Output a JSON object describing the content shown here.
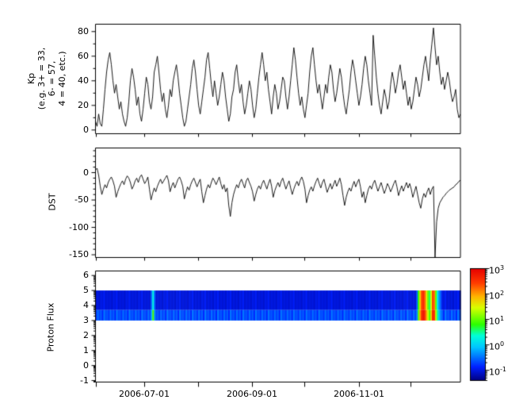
{
  "figure": {
    "background": "#ffffff",
    "frame_color": "#000000",
    "text_color": "#000000"
  },
  "chart_data": {
    "x_axis": {
      "date_range": [
        "2006-06-01",
        "2006-12-29"
      ],
      "month_ticks": [
        "2006-06-01",
        "2006-07-01",
        "2006-08-01",
        "2006-09-01",
        "2006-10-01",
        "2006-11-01",
        "2006-12-01"
      ],
      "labeled_tick_indices": [
        1,
        3,
        5
      ],
      "tick_labels": [
        "2006-07-01",
        "2006-09-01",
        "2006-11-01"
      ]
    },
    "kp": {
      "type": "line",
      "ylabel": "Kp\n(e.g. 3+ = 33,\n6- = 57,\n4 = 40, etc.)",
      "yticks": [
        80,
        60,
        40,
        20,
        0
      ],
      "yticklabels": [
        "80",
        "60",
        "40",
        "20",
        "0"
      ],
      "yminorticks": [
        10,
        30,
        50,
        70
      ],
      "ylim": [
        -3,
        86
      ],
      "line_color": "#000000",
      "values": [
        7,
        3,
        13,
        5,
        3,
        17,
        33,
        47,
        57,
        63,
        53,
        40,
        30,
        37,
        27,
        17,
        23,
        13,
        7,
        3,
        10,
        23,
        40,
        50,
        43,
        33,
        20,
        27,
        13,
        7,
        17,
        30,
        43,
        37,
        23,
        17,
        27,
        47,
        53,
        60,
        47,
        33,
        23,
        30,
        17,
        10,
        20,
        33,
        27,
        40,
        47,
        53,
        43,
        30,
        20,
        10,
        3,
        7,
        17,
        27,
        37,
        50,
        57,
        47,
        33,
        20,
        13,
        23,
        33,
        43,
        57,
        63,
        50,
        37,
        27,
        40,
        30,
        20,
        27,
        37,
        47,
        40,
        27,
        17,
        7,
        13,
        27,
        33,
        47,
        53,
        40,
        30,
        37,
        23,
        13,
        20,
        30,
        40,
        33,
        20,
        10,
        17,
        30,
        43,
        53,
        63,
        53,
        40,
        47,
        33,
        23,
        13,
        27,
        37,
        30,
        17,
        23,
        33,
        43,
        40,
        27,
        17,
        27,
        40,
        53,
        67,
        57,
        43,
        30,
        20,
        27,
        17,
        10,
        20,
        30,
        47,
        60,
        67,
        53,
        40,
        30,
        37,
        27,
        17,
        27,
        37,
        30,
        43,
        53,
        47,
        33,
        23,
        30,
        40,
        50,
        43,
        30,
        20,
        13,
        23,
        33,
        47,
        57,
        50,
        40,
        30,
        20,
        27,
        37,
        50,
        60,
        53,
        40,
        30,
        20,
        77,
        60,
        43,
        30,
        20,
        13,
        23,
        33,
        27,
        17,
        23,
        37,
        47,
        40,
        30,
        37,
        47,
        53,
        43,
        33,
        40,
        30,
        20,
        27,
        17,
        23,
        33,
        43,
        37,
        27,
        33,
        43,
        53,
        60,
        50,
        40,
        57,
        70,
        83,
        67,
        53,
        60,
        47,
        37,
        43,
        33,
        40,
        47,
        40,
        30,
        23,
        27,
        33,
        17,
        10,
        13
      ]
    },
    "dst": {
      "type": "line",
      "ylabel": "DST",
      "yticks": [
        0,
        -50,
        -100,
        -150
      ],
      "yticklabels": [
        "0",
        "-50",
        "-100",
        "-150"
      ],
      "yminor_step": 10,
      "ylim": [
        -155,
        45
      ],
      "line_color": "#000000",
      "values": [
        5,
        8,
        -5,
        -25,
        -40,
        -30,
        -22,
        -28,
        -18,
        -12,
        -8,
        -15,
        -25,
        -45,
        -35,
        -27,
        -20,
        -15,
        -22,
        -12,
        -6,
        -10,
        -18,
        -30,
        -24,
        -15,
        -10,
        -18,
        -8,
        -4,
        -12,
        -20,
        -15,
        -8,
        -30,
        -50,
        -38,
        -28,
        -35,
        -25,
        -18,
        -12,
        -20,
        -15,
        -10,
        -5,
        -15,
        -35,
        -25,
        -18,
        -28,
        -20,
        -12,
        -8,
        -15,
        -25,
        -48,
        -36,
        -26,
        -32,
        -22,
        -15,
        -10,
        -18,
        -26,
        -18,
        -12,
        -35,
        -55,
        -42,
        -30,
        -22,
        -28,
        -18,
        -10,
        -15,
        -22,
        -15,
        -8,
        -20,
        -30,
        -22,
        -35,
        -28,
        -60,
        -80,
        -55,
        -40,
        -30,
        -22,
        -28,
        -18,
        -12,
        -20,
        -28,
        -15,
        -10,
        -18,
        -25,
        -35,
        -52,
        -40,
        -30,
        -24,
        -30,
        -20,
        -14,
        -22,
        -30,
        -20,
        -12,
        -25,
        -45,
        -33,
        -25,
        -18,
        -26,
        -16,
        -10,
        -20,
        -30,
        -22,
        -15,
        -28,
        -40,
        -30,
        -22,
        -16,
        -24,
        -14,
        -8,
        -16,
        -30,
        -55,
        -42,
        -32,
        -26,
        -34,
        -24,
        -16,
        -10,
        -20,
        -28,
        -18,
        -12,
        -24,
        -36,
        -28,
        -20,
        -30,
        -22,
        -14,
        -25,
        -18,
        -10,
        -22,
        -42,
        -60,
        -45,
        -35,
        -28,
        -34,
        -24,
        -16,
        -26,
        -18,
        -12,
        -26,
        -45,
        -35,
        -55,
        -42,
        -30,
        -24,
        -30,
        -20,
        -14,
        -24,
        -34,
        -26,
        -18,
        -28,
        -38,
        -30,
        -20,
        -26,
        -35,
        -28,
        -20,
        -14,
        -26,
        -42,
        -32,
        -24,
        -34,
        -26,
        -18,
        -28,
        -20,
        -30,
        -45,
        -35,
        -25,
        -40,
        -55,
        -65,
        -48,
        -38,
        -45,
        -35,
        -28,
        -40,
        -30,
        -25,
        -155,
        -90,
        -65,
        -55,
        -50,
        -45,
        -42,
        -38,
        -35,
        -32,
        -30,
        -28,
        -26,
        -22,
        -20,
        -16,
        -14
      ]
    },
    "proton": {
      "type": "spectrogram",
      "ylabel": "Proton Flux",
      "yticks": [
        6,
        5,
        4,
        3,
        2,
        1,
        0,
        -1
      ],
      "yticklabels": [
        "6",
        "5",
        "4",
        "3",
        "2",
        "1",
        "0",
        "-1"
      ],
      "ylim": [
        -1.1,
        6.3
      ],
      "band_y_range": [
        3,
        5
      ],
      "band_split": 3.7,
      "n_columns": 231,
      "background_upper_cycle": [
        -1.05,
        -1.0,
        -1.08,
        -0.96,
        -1.02,
        -0.9,
        -1.06,
        -1.0
      ],
      "background_lower_cycle": [
        -0.78,
        -0.5,
        -0.72,
        -0.58,
        -0.85,
        -0.45,
        -0.68,
        -0.62
      ],
      "event_columns": [
        {
          "col": 35,
          "u": -0.5,
          "l": -0.2
        },
        {
          "col": 36,
          "u": 0.3,
          "l": 0.95
        },
        {
          "col": 37,
          "u": -0.6,
          "l": -0.35
        },
        {
          "col": 203,
          "u": -0.6,
          "l": -0.4
        },
        {
          "col": 204,
          "u": 0.8,
          "l": 1.0
        },
        {
          "col": 205,
          "u": 1.8,
          "l": 2.0
        },
        {
          "col": 206,
          "u": 2.4,
          "l": 2.6
        },
        {
          "col": 207,
          "u": 2.6,
          "l": 2.8
        },
        {
          "col": 208,
          "u": 2.3,
          "l": 2.6
        },
        {
          "col": 209,
          "u": 1.6,
          "l": 2.0
        },
        {
          "col": 210,
          "u": 1.0,
          "l": 1.4
        },
        {
          "col": 211,
          "u": 0.6,
          "l": 0.9
        },
        {
          "col": 212,
          "u": 1.5,
          "l": 1.8
        },
        {
          "col": 213,
          "u": 2.5,
          "l": 2.7
        },
        {
          "col": 214,
          "u": 2.2,
          "l": 2.5
        },
        {
          "col": 215,
          "u": 1.0,
          "l": 1.3
        },
        {
          "col": 216,
          "u": 0.2,
          "l": 0.5
        },
        {
          "col": 217,
          "u": -0.3,
          "l": -0.1
        },
        {
          "col": 218,
          "u": -0.6,
          "l": -0.4
        }
      ]
    },
    "colorbar": {
      "tick_base": "10",
      "tick_exponents": [
        "3",
        "2",
        "1",
        "0",
        "-1"
      ],
      "log_range": [
        -1.4,
        3
      ],
      "gradient_stops": [
        [
          0.0,
          "#000082"
        ],
        [
          0.12,
          "#0020ff"
        ],
        [
          0.3,
          "#00c8ff"
        ],
        [
          0.4,
          "#00ffd8"
        ],
        [
          0.5,
          "#2cff00"
        ],
        [
          0.65,
          "#d8ff00"
        ],
        [
          0.75,
          "#ffb400"
        ],
        [
          0.87,
          "#ff3c00"
        ],
        [
          1.0,
          "#e60000"
        ]
      ]
    }
  }
}
